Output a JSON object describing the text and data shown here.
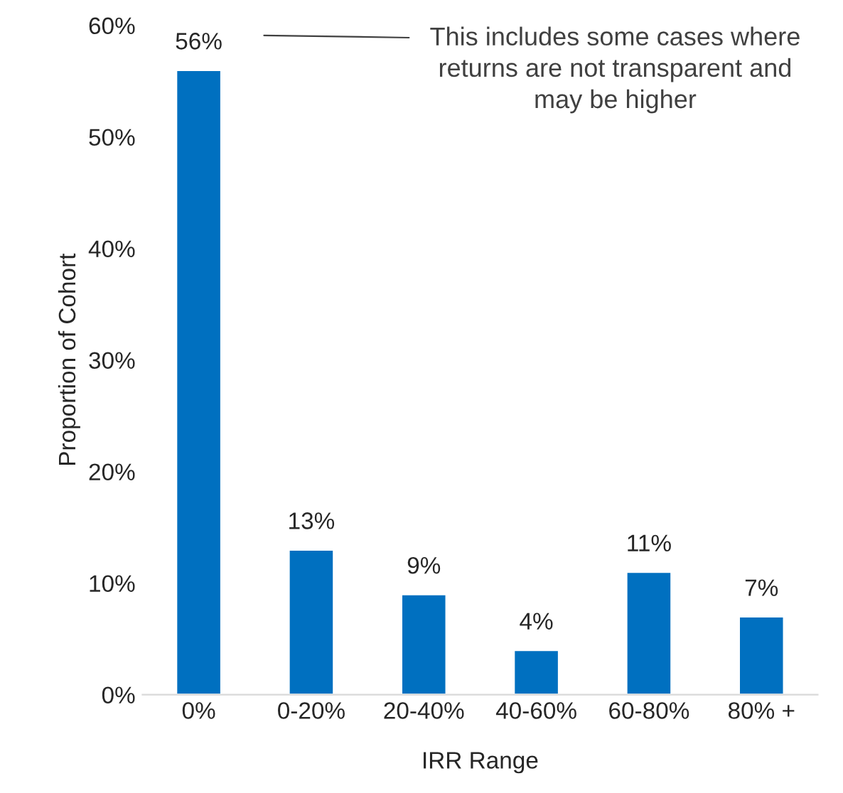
{
  "chart_data": {
    "type": "bar",
    "xlabel": "IRR Range",
    "ylabel": "Proportion of Cohort",
    "categories": [
      "0%",
      "0-20%",
      "20-40%",
      "40-60%",
      "60-80%",
      "80% +"
    ],
    "values": [
      56,
      13,
      9,
      4,
      11,
      7
    ],
    "value_labels": [
      "56%",
      "13%",
      "9%",
      "4%",
      "11%",
      "7%"
    ],
    "color": "#0070c0",
    "ylim": [
      0,
      60
    ],
    "yticks": [
      {
        "value": 0,
        "label": "0%"
      },
      {
        "value": 10,
        "label": "10%"
      },
      {
        "value": 20,
        "label": "20%"
      },
      {
        "value": 30,
        "label": "30%"
      },
      {
        "value": 40,
        "label": "40%"
      },
      {
        "value": 50,
        "label": "50%"
      },
      {
        "value": 60,
        "label": "60%"
      }
    ],
    "annotations": [
      "This includes some cases where\nreturns are not transparent and\nmay be higher"
    ],
    "grid": false
  }
}
